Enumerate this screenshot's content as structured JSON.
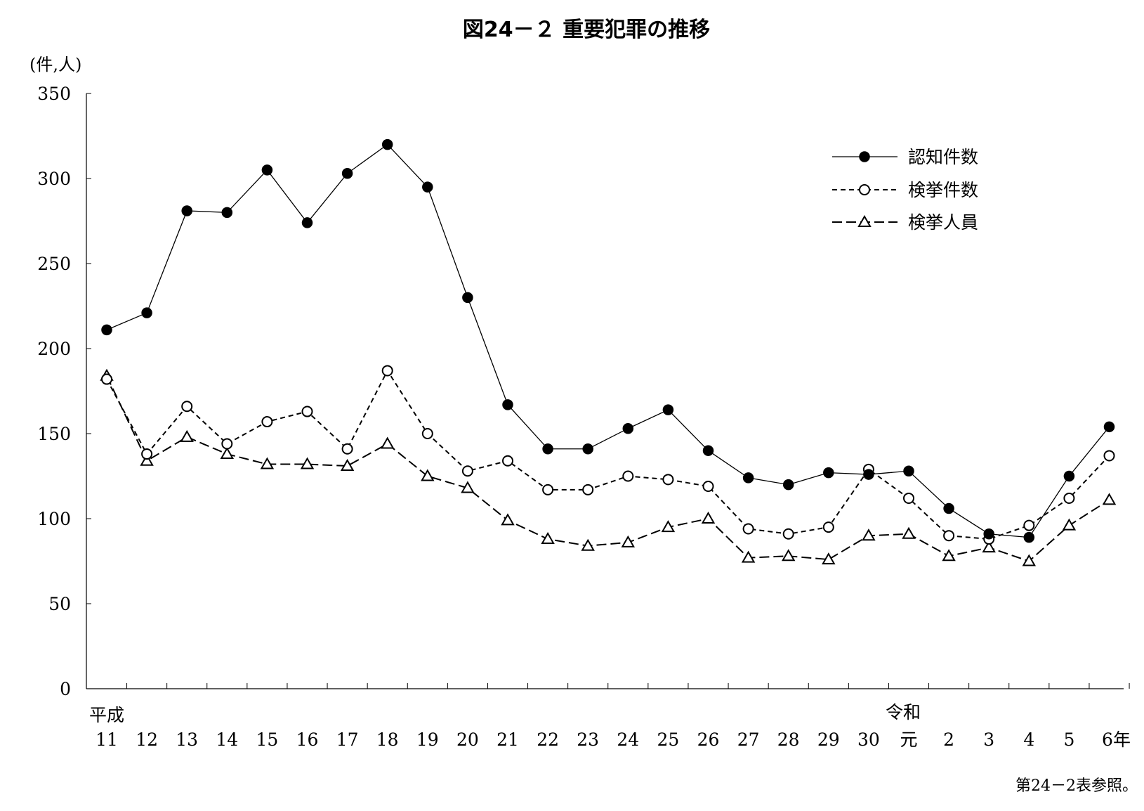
{
  "chart_data": {
    "type": "line",
    "title": "図24－２ 重要犯罪の推移",
    "ylabel": "(件,人)",
    "ylim": [
      0,
      350
    ],
    "yticks": [
      "0",
      "50",
      "100",
      "150",
      "200",
      "250",
      "300",
      "350"
    ],
    "era_labels": {
      "heisei": "平成",
      "reiwa": "令和"
    },
    "categories": [
      "11",
      "12",
      "13",
      "14",
      "15",
      "16",
      "17",
      "18",
      "19",
      "20",
      "21",
      "22",
      "23",
      "24",
      "25",
      "26",
      "27",
      "28",
      "29",
      "30",
      "元",
      "2",
      "3",
      "4",
      "5",
      "6年"
    ],
    "series": [
      {
        "name": "認知件数",
        "marker": "filled-circle",
        "line": "solid",
        "values": [
          211,
          221,
          281,
          280,
          305,
          274,
          303,
          320,
          295,
          230,
          167,
          141,
          141,
          153,
          164,
          140,
          124,
          120,
          127,
          126,
          128,
          106,
          91,
          89,
          125,
          154
        ]
      },
      {
        "name": "検挙件数",
        "marker": "open-circle",
        "line": "dotted",
        "values": [
          182,
          138,
          166,
          144,
          157,
          163,
          141,
          187,
          150,
          128,
          134,
          117,
          117,
          125,
          123,
          119,
          94,
          91,
          95,
          129,
          112,
          90,
          88,
          96,
          112,
          137
        ]
      },
      {
        "name": "検挙人員",
        "marker": "open-triangle",
        "line": "dashed",
        "values": [
          184,
          134,
          148,
          138,
          132,
          132,
          131,
          144,
          125,
          118,
          99,
          88,
          84,
          86,
          95,
          100,
          77,
          78,
          76,
          90,
          91,
          78,
          83,
          75,
          96,
          111
        ]
      }
    ],
    "legend_position": "top-right",
    "grid": false,
    "source_note": "第24－2表参照。",
    "colors": {
      "line": "#000000",
      "background": "#ffffff"
    }
  }
}
